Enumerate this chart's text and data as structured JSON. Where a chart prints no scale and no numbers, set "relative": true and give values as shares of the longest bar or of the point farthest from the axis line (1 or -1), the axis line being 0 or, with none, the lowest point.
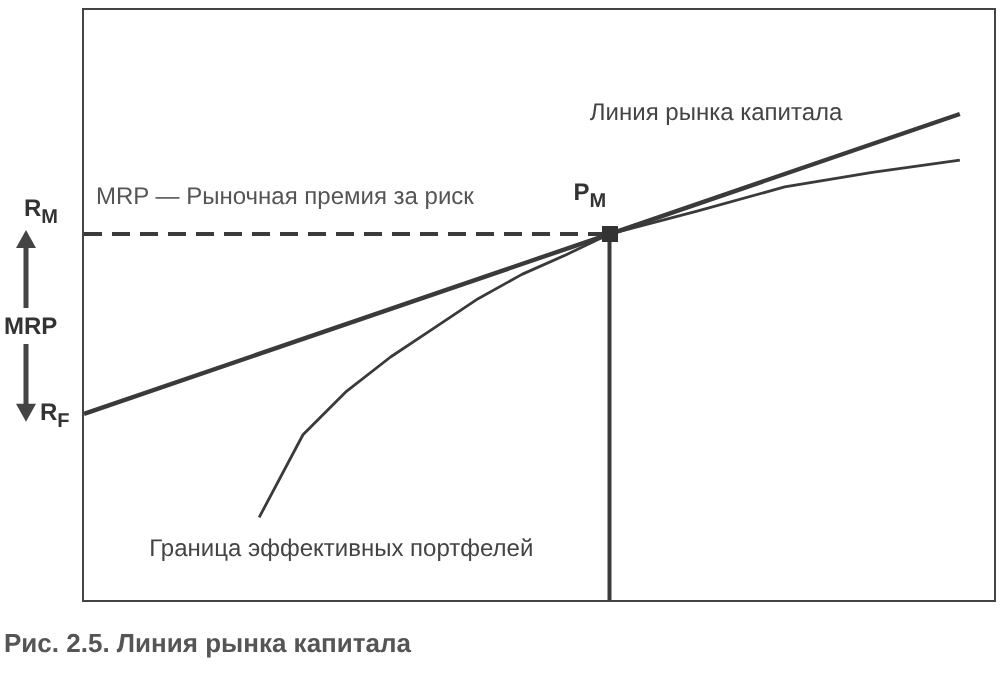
{
  "chart_data": {
    "type": "line",
    "title": "Рис. 2.5. Линия рынка капитала",
    "relative": true,
    "categories": [
      null,
      null,
      null,
      null,
      null,
      null,
      null,
      null,
      null,
      null,
      null,
      null,
      null,
      null,
      null,
      null,
      null,
      null,
      null,
      null,
      null
    ],
    "series": [
      {
        "name": "Линия рынка капитала",
        "color": "#3a3a3a",
        "values": [
          0.383,
          null,
          null,
          null,
          null,
          null,
          null,
          null,
          null,
          null,
          null,
          null,
          0.753,
          null,
          null,
          null,
          null,
          null,
          null,
          null,
          1
        ]
      },
      {
        "name": "Граница эффективных портфелей",
        "color": "#3a3a3a",
        "values": [
          null,
          null,
          null,
          null,
          0.17,
          0.34,
          0.43,
          0.5,
          0.56,
          0.62,
          0.67,
          0.71,
          0.753,
          null,
          0.8,
          null,
          0.85,
          null,
          0.88,
          null,
          0.905
        ]
      },
      {
        "color": "#3a3a3a",
        "line_style": "dashed",
        "values": [
          0.753,
          0.753,
          0.753,
          0.753,
          0.753,
          0.753,
          0.753,
          0.753,
          0.753,
          0.753,
          0.753,
          0.753,
          0.753,
          null,
          null,
          null,
          null,
          null,
          null,
          null,
          null
        ]
      }
    ],
    "annotations": [
      "MRP — Рыночная премия за риск",
      "R$_{M}$",
      "MRP",
      "R$_{F}$",
      "P$_{M}$"
    ],
    "grid": false,
    "legend": false,
    "line_style": "solid"
  }
}
